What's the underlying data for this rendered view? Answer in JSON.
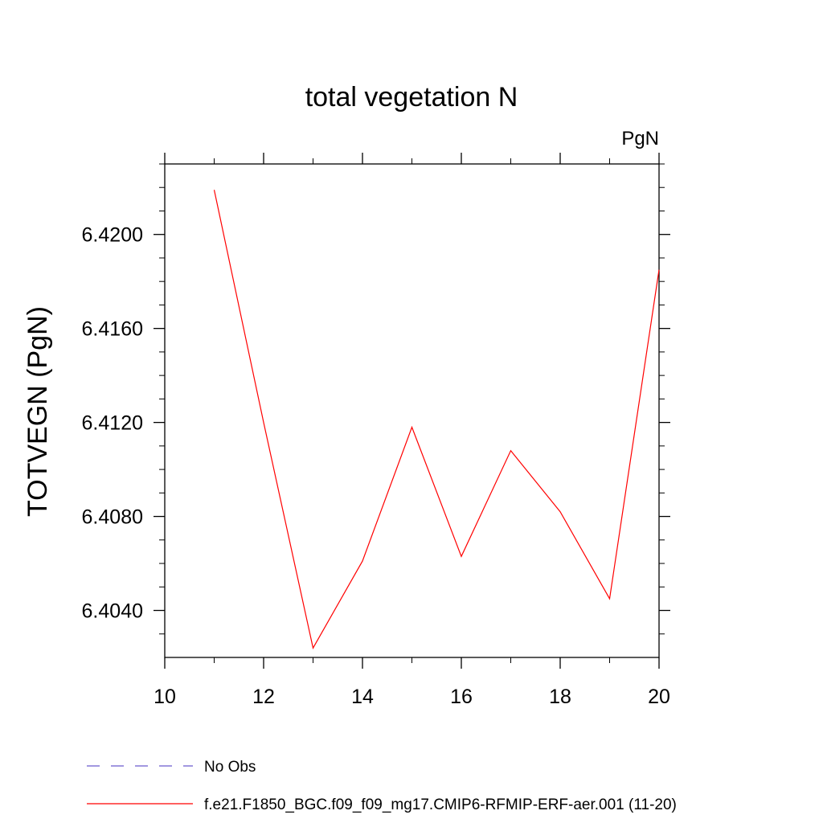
{
  "chart_data": {
    "type": "line",
    "title": "total vegetation N",
    "units_label": "PgN",
    "xlabel": "",
    "ylabel": "TOTVEGN  (PgN)",
    "xlim": [
      10,
      20
    ],
    "ylim": [
      6.402,
      6.423
    ],
    "x_ticks": [
      10,
      12,
      14,
      16,
      18,
      20
    ],
    "x_tick_labels": [
      "10",
      "12",
      "14",
      "16",
      "18",
      "20"
    ],
    "y_ticks": [
      6.404,
      6.408,
      6.412,
      6.416,
      6.42
    ],
    "y_tick_labels": [
      "6.4040",
      "6.4080",
      "6.4120",
      "6.4160",
      "6.4200"
    ],
    "grid": false,
    "legend_position": "bottom-left",
    "series": [
      {
        "name": "f.e21.F1850_BGC.f09_f09_mg17.CMIP6-RFMIP-ERF-aer.001 (11-20)",
        "color": "#ff0000",
        "style": "solid",
        "x": [
          11,
          12,
          13,
          14,
          15,
          16,
          17,
          18,
          19,
          20
        ],
        "y": [
          6.4219,
          6.412,
          6.4024,
          6.4061,
          6.4118,
          6.4063,
          6.4108,
          6.4082,
          6.4045,
          6.4185
        ]
      }
    ],
    "legend": [
      {
        "label": "No Obs",
        "color": "#6a5acd",
        "style": "dashed"
      },
      {
        "label": "f.e21.F1850_BGC.f09_f09_mg17.CMIP6-RFMIP-ERF-aer.001 (11-20)",
        "color": "#ff0000",
        "style": "solid"
      }
    ]
  }
}
